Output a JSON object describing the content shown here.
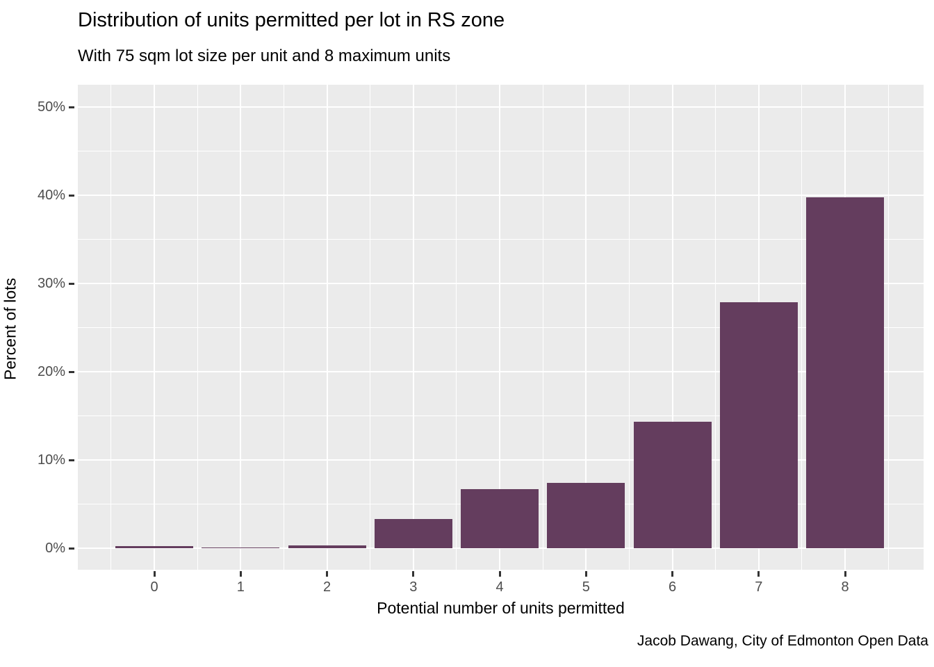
{
  "header": {
    "title": "Distribution of units permitted per lot in RS zone",
    "subtitle": "With 75 sqm lot size per unit and 8 maximum units"
  },
  "caption": "Jacob Dawang, City of Edmonton Open Data",
  "colors": {
    "bar": "#643D5E",
    "panel_background": "#EBEBEB",
    "gridline": "#FFFFFF",
    "tick_mark": "#333333",
    "tick_label": "#4D4D4D",
    "text": "#000000"
  },
  "chart_data": {
    "type": "bar",
    "title": "Distribution of units permitted per lot in RS zone",
    "subtitle": "With 75 sqm lot size per unit and 8 maximum units",
    "caption": "Jacob Dawang, City of Edmonton Open Data",
    "xlabel": "Potential number of units permitted",
    "ylabel": "Percent of lots",
    "categories": [
      0,
      1,
      2,
      3,
      4,
      5,
      6,
      7,
      8
    ],
    "values": [
      0.2,
      0.1,
      0.3,
      3.3,
      6.7,
      7.4,
      14.3,
      27.9,
      39.8
    ],
    "value_unit": "percent of lots",
    "x_tick_labels": [
      "0",
      "1",
      "2",
      "3",
      "4",
      "5",
      "6",
      "7",
      "8"
    ],
    "y_tick_labels": [
      "0%",
      "10%",
      "20%",
      "30%",
      "40%",
      "50%"
    ],
    "y_tick_values": [
      0,
      10,
      20,
      30,
      40,
      50
    ],
    "y_minor_values": [
      5,
      15,
      25,
      35,
      45
    ],
    "ylim": [
      0,
      50
    ],
    "grid": "major and minor, white on gray panel",
    "legend": "none",
    "bar_relative_width": 0.9
  }
}
